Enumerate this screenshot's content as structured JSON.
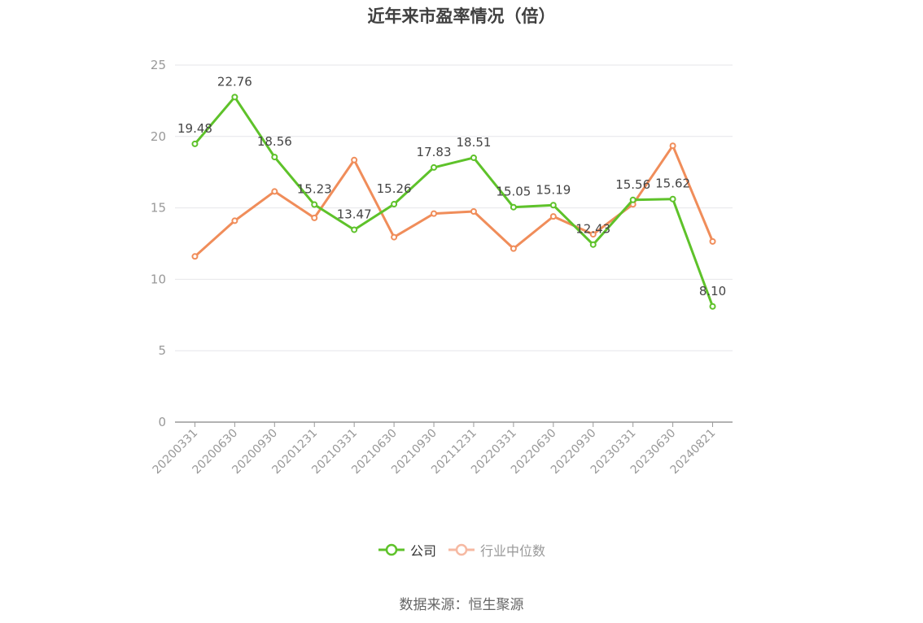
{
  "title": "近年来市盈率情况（倍）",
  "source": "数据来源：恒生聚源",
  "colors": {
    "company": "#5ec22a",
    "industry": "#f08d5a",
    "industry_legend": "#f6b9a2",
    "grid": "#e6e6ea",
    "axis": "#999999",
    "tick_text": "#999999",
    "label_text": "#444444"
  },
  "chart_data": {
    "type": "line",
    "categories": [
      "20200331",
      "20200630",
      "20200930",
      "20201231",
      "20210331",
      "20210630",
      "20210930",
      "20211231",
      "20220331",
      "20220630",
      "20220930",
      "20230331",
      "20230630",
      "20240821"
    ],
    "series": [
      {
        "name": "公司",
        "values": [
          19.48,
          22.76,
          18.56,
          15.23,
          13.47,
          15.26,
          17.83,
          18.51,
          15.05,
          15.19,
          12.43,
          15.56,
          15.62,
          8.1
        ],
        "labels": [
          "19.48",
          "22.76",
          "18.56",
          "15.23",
          "13.47",
          "15.26",
          "17.83",
          "18.51",
          "15.05",
          "15.19",
          "12.43",
          "15.56",
          "15.62",
          "8.10"
        ]
      },
      {
        "name": "行业中位数",
        "values": [
          11.6,
          14.1,
          16.15,
          14.3,
          18.35,
          12.95,
          14.6,
          14.75,
          12.15,
          14.4,
          13.15,
          15.25,
          19.35,
          12.65
        ]
      }
    ],
    "ylim": [
      0,
      25
    ],
    "yticks": [
      "0",
      "5",
      "10",
      "15",
      "20",
      "25"
    ],
    "grid": true,
    "legend_position": "bottom-center"
  }
}
